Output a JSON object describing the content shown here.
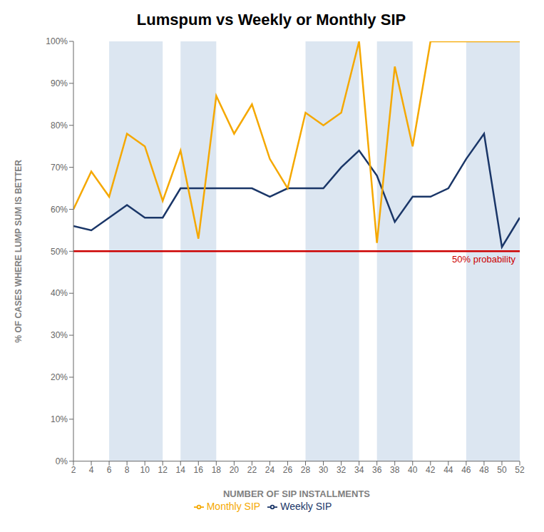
{
  "chart_data": {
    "type": "line",
    "title": "Lumspum vs Weekly or Monthly SIP",
    "x_label": "NUMBER OF SIP INSTALLMENTS",
    "y_label": "% OF CASES WHERE LUMP SUM IS BETTER",
    "x": [
      2,
      4,
      6,
      8,
      10,
      12,
      14,
      16,
      18,
      20,
      22,
      24,
      26,
      28,
      30,
      32,
      34,
      36,
      38,
      40,
      42,
      44,
      46,
      48,
      50,
      52
    ],
    "series": [
      {
        "name": "Weekly SIP",
        "color": "#1a3668",
        "values": [
          56,
          55,
          58,
          61,
          58,
          58,
          65,
          65,
          65,
          65,
          65,
          63,
          65,
          65,
          65,
          70,
          74,
          68,
          57,
          63,
          63,
          65,
          72,
          78,
          51,
          58
        ]
      },
      {
        "name": "Monthly SIP",
        "color": "#f5a800",
        "values": [
          60,
          69,
          63,
          78,
          75,
          62,
          74,
          53,
          87,
          78,
          85,
          72,
          65,
          83,
          80,
          83,
          100,
          52,
          94,
          75,
          100,
          100,
          100,
          100,
          100,
          100
        ]
      }
    ],
    "xlim": [
      2,
      52
    ],
    "xticks": [
      2,
      4,
      6,
      8,
      10,
      12,
      14,
      16,
      18,
      20,
      22,
      24,
      26,
      28,
      30,
      32,
      34,
      36,
      38,
      40,
      42,
      44,
      46,
      48,
      50,
      52
    ],
    "ylim": [
      0,
      100
    ],
    "yticks": [
      {
        "value": 0,
        "label": "0%"
      },
      {
        "value": 10,
        "label": "10%"
      },
      {
        "value": 20,
        "label": "20%"
      },
      {
        "value": 30,
        "label": "30%"
      },
      {
        "value": 40,
        "label": "40%"
      },
      {
        "value": 50,
        "label": "50%"
      },
      {
        "value": 60,
        "label": "60%"
      },
      {
        "value": 70,
        "label": "70%"
      },
      {
        "value": 80,
        "label": "80%"
      },
      {
        "value": 90,
        "label": "90%"
      },
      {
        "value": 100,
        "label": "100%"
      }
    ],
    "shaded_bands": {
      "color": "#dce6f1",
      "ranges": [
        [
          6,
          12
        ],
        [
          14,
          18
        ],
        [
          28,
          34
        ],
        [
          36,
          40
        ],
        [
          46,
          52
        ]
      ]
    },
    "reference_line": {
      "y": 50,
      "color": "#cc0000",
      "label": "50% probability"
    },
    "grid": false,
    "legend": "bottom"
  }
}
